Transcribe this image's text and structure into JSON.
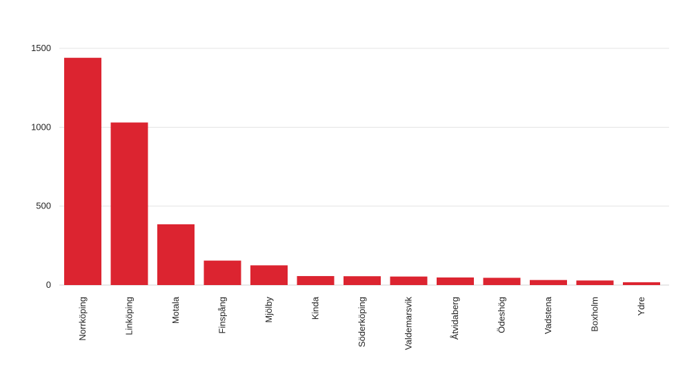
{
  "chart_data": {
    "type": "bar",
    "title": "",
    "xlabel": "",
    "ylabel": "",
    "categories": [
      "Norrköping",
      "Linköping",
      "Motala",
      "Finspång",
      "Mjölby",
      "Kinda",
      "Söderköping",
      "Valdemarsvik",
      "Åtvidaberg",
      "Ödeshög",
      "Vadstena",
      "Boxholm",
      "Ydre"
    ],
    "values": [
      1440,
      1030,
      385,
      155,
      125,
      57,
      56,
      54,
      48,
      46,
      32,
      29,
      18
    ],
    "ylim": [
      0,
      1500
    ],
    "yticks": [
      0,
      500,
      1000,
      1500
    ],
    "bar_color": "#dc2430",
    "grid": true,
    "legend": "none"
  }
}
